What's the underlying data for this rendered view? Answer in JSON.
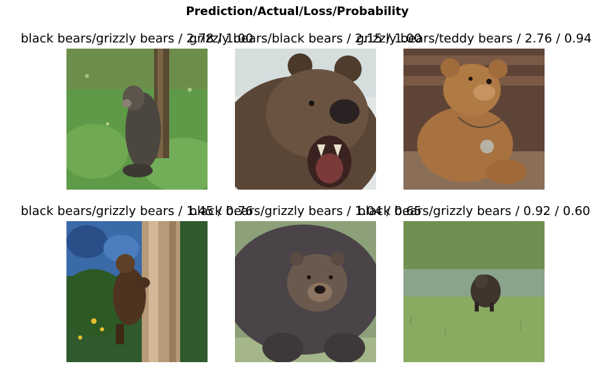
{
  "figure": {
    "title": "Prediction/Actual/Loss/Probability"
  },
  "cells": [
    {
      "label": "black bears/grizzly bears / 2.78 / 1.00",
      "scene": "grizzly-bear-by-tree-on-grass"
    },
    {
      "label": "grizzly bears/black bears / 2.15 / 1.00",
      "scene": "roaring-brown-bear-closeup"
    },
    {
      "label": "grizzly bears/teddy bears / 2.76 / 0.94",
      "scene": "teddy-bear-on-wooden-bench"
    },
    {
      "label": "black bears/grizzly bears / 1.45 / 0.76",
      "scene": "bear-cub-climbing-tree"
    },
    {
      "label": "black bears/grizzly bears / 1.04 / 0.65",
      "scene": "large-brown-bear-frontal"
    },
    {
      "label": "black bears/grizzly bears / 0.92 / 0.60",
      "scene": "bear-in-grass-meadow"
    }
  ]
}
